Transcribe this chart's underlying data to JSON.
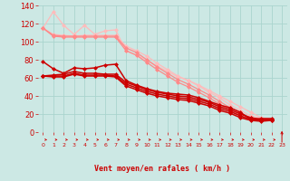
{
  "bg_color": "#cce8e4",
  "grid_color": "#aad4ce",
  "xlabel": "Vent moyen/en rafales ( km/h )",
  "xlabel_color": "#cc0000",
  "tick_color": "#cc0000",
  "ylim_min": 0,
  "ylim_max": 140,
  "yticks": [
    0,
    20,
    40,
    60,
    80,
    100,
    120,
    140
  ],
  "ytick_fontsize": 6,
  "xtick_fontsize": 4.5,
  "xlabel_fontsize": 6,
  "series": [
    {
      "color": "#ffbbbb",
      "lw": 0.9,
      "ms": 2.5,
      "values": [
        115,
        133,
        118,
        108,
        118,
        108,
        112,
        113,
        90,
        85,
        80,
        73,
        67,
        61,
        57,
        52,
        46,
        40,
        34,
        28,
        22,
        16,
        14
      ]
    },
    {
      "color": "#ffbbbb",
      "lw": 0.9,
      "ms": 2.5,
      "values": [
        115,
        108,
        107,
        106,
        107,
        107,
        107,
        107,
        95,
        90,
        84,
        76,
        69,
        62,
        57,
        51,
        44,
        38,
        30,
        24,
        18,
        15,
        14
      ]
    },
    {
      "color": "#ff8888",
      "lw": 0.9,
      "ms": 2.5,
      "values": [
        115,
        107,
        106,
        106,
        106,
        106,
        106,
        106,
        93,
        88,
        80,
        72,
        65,
        58,
        53,
        47,
        41,
        34,
        27,
        21,
        16,
        14,
        14
      ]
    },
    {
      "color": "#ff8888",
      "lw": 0.9,
      "ms": 2.5,
      "values": [
        115,
        106,
        105,
        105,
        105,
        105,
        105,
        105,
        90,
        85,
        77,
        69,
        62,
        55,
        50,
        44,
        38,
        31,
        24,
        18,
        14,
        13,
        13
      ]
    },
    {
      "color": "#cc0000",
      "lw": 1.1,
      "ms": 2.5,
      "values": [
        78,
        70,
        65,
        71,
        70,
        71,
        74,
        75,
        57,
        52,
        48,
        45,
        43,
        42,
        41,
        38,
        34,
        30,
        27,
        22,
        14,
        15,
        15
      ]
    },
    {
      "color": "#cc0000",
      "lw": 1.1,
      "ms": 2.5,
      "values": [
        62,
        63,
        64,
        67,
        65,
        65,
        64,
        64,
        55,
        51,
        47,
        44,
        42,
        40,
        39,
        36,
        33,
        28,
        25,
        20,
        16,
        14,
        14
      ]
    },
    {
      "color": "#cc0000",
      "lw": 1.1,
      "ms": 2.5,
      "values": [
        62,
        62,
        62,
        65,
        63,
        63,
        63,
        62,
        53,
        49,
        45,
        42,
        40,
        38,
        37,
        34,
        31,
        26,
        23,
        18,
        14,
        13,
        13
      ]
    },
    {
      "color": "#cc0000",
      "lw": 1.1,
      "ms": 2.5,
      "values": [
        62,
        61,
        61,
        64,
        62,
        62,
        62,
        61,
        51,
        47,
        43,
        40,
        38,
        36,
        35,
        32,
        29,
        24,
        21,
        16,
        13,
        12,
        13
      ]
    }
  ]
}
